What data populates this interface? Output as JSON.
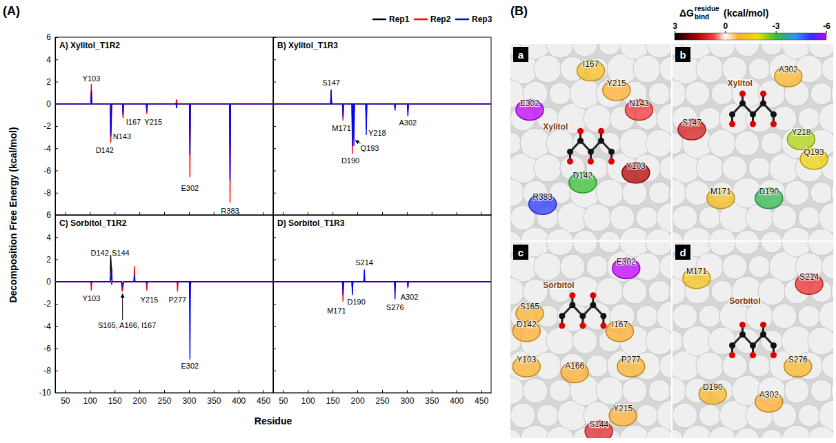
{
  "figure": {
    "panel_a_label": "(A)",
    "panel_b_label": "(B)",
    "ylabel": "Decomposition Free Energy (kcal/mol)",
    "xlabel": "Residue"
  },
  "chart_data": [
    {
      "type": "line",
      "title": "A) Xylitol_T1R2",
      "legend": "top-right",
      "tick_labels": "y",
      "xlim": [
        30,
        470
      ],
      "xticks": [
        50,
        100,
        150,
        200,
        250,
        300,
        350,
        400,
        450
      ],
      "ylim": [
        -10,
        6
      ],
      "yticks": [
        6,
        4,
        2,
        0,
        -2,
        -4,
        -6,
        -8
      ],
      "x": [
        30,
        102,
        103,
        104,
        141,
        142,
        143,
        144,
        166,
        167,
        168,
        214,
        215,
        216,
        274,
        275,
        276,
        301,
        302,
        303,
        382,
        383,
        384,
        470
      ],
      "series": [
        {
          "name": "Rep1",
          "color": "#000000",
          "values": [
            0,
            0,
            0.9,
            0,
            0,
            -1.5,
            -1.0,
            0,
            0,
            -0.8,
            0,
            0,
            -0.5,
            0,
            0,
            0.3,
            0,
            0,
            -3.0,
            0,
            0,
            -4.5,
            0,
            0
          ]
        },
        {
          "name": "Rep2",
          "color": "#ff0000",
          "values": [
            0,
            0,
            1.8,
            0,
            0,
            -3.5,
            -2.6,
            0,
            0,
            -1.3,
            0,
            0,
            -0.9,
            0,
            0,
            0.4,
            0,
            0,
            -6.6,
            0,
            0,
            -8.9,
            0,
            0
          ]
        },
        {
          "name": "Rep3",
          "color": "#0000ff",
          "values": [
            0,
            0,
            1.2,
            0,
            0,
            -2.9,
            -2.2,
            0,
            0,
            -1.0,
            0,
            0,
            -0.7,
            0,
            0,
            -0.4,
            0,
            0,
            -4.6,
            0,
            0,
            -6.8,
            0,
            0
          ]
        }
      ],
      "annotations": [
        {
          "text": "Y103",
          "x": 103,
          "y": 2.3
        },
        {
          "text": "I167",
          "x": 188,
          "y": -1.6
        },
        {
          "text": "N143",
          "x": 165,
          "y": -2.9
        },
        {
          "text": "D142",
          "x": 130,
          "y": -4.2
        },
        {
          "text": "Y215",
          "x": 228,
          "y": -1.6
        },
        {
          "text": "E302",
          "x": 302,
          "y": -7.6
        },
        {
          "text": "R383",
          "x": 383,
          "y": -9.6
        }
      ]
    },
    {
      "type": "line",
      "title": "B) Xylitol_T1R3",
      "tick_labels": false,
      "xlim": [
        30,
        470
      ],
      "xticks": [
        50,
        100,
        150,
        200,
        250,
        300,
        350,
        400,
        450
      ],
      "ylim": [
        -10,
        6
      ],
      "yticks": [
        6,
        4,
        2,
        0,
        -2,
        -4,
        -6,
        -8
      ],
      "x": [
        30,
        146,
        147,
        148,
        170,
        171,
        172,
        189,
        190,
        191,
        192,
        193,
        194,
        217,
        218,
        219,
        275,
        276,
        277,
        301,
        302,
        303,
        470
      ],
      "series": [
        {
          "color": "#000000",
          "values": [
            0,
            0,
            1.3,
            0,
            0,
            -0.8,
            0,
            0,
            -2.0,
            0,
            0,
            -1.5,
            0,
            0,
            -1.2,
            0,
            0,
            -0.2,
            0,
            0,
            -0.5,
            0,
            0
          ]
        },
        {
          "color": "#ff0000",
          "values": [
            0,
            0,
            0.6,
            0,
            0,
            -1.5,
            0,
            0,
            -4.5,
            0,
            0,
            -3.2,
            0,
            0,
            -2.2,
            0,
            0,
            -0.4,
            0,
            0,
            -0.8,
            0,
            0
          ]
        },
        {
          "color": "#0000ff",
          "values": [
            0,
            0,
            1.0,
            0,
            0,
            -1.2,
            0,
            0,
            -3.8,
            0,
            0,
            -3.8,
            0,
            0,
            -2.8,
            0,
            0,
            -0.6,
            0,
            0,
            -1.1,
            0,
            0
          ]
        }
      ],
      "annotations": [
        {
          "text": "S147",
          "x": 147,
          "y": 1.9
        },
        {
          "text": "M171",
          "x": 168,
          "y": -2.2
        },
        {
          "text": "D190",
          "x": 186,
          "y": -5.1
        },
        {
          "text": "Q193",
          "x": 225,
          "y": -4.0,
          "target": [
            196,
            -3.3
          ]
        },
        {
          "text": "Y218",
          "x": 240,
          "y": -2.6
        },
        {
          "text": "A302",
          "x": 302,
          "y": -1.7
        }
      ]
    },
    {
      "type": "line",
      "title": "C) Sorbitol_T1R2",
      "tick_labels": true,
      "xlim": [
        30,
        470
      ],
      "xticks": [
        50,
        100,
        150,
        200,
        250,
        300,
        350,
        400,
        450
      ],
      "ylim": [
        -10,
        6
      ],
      "yticks": [
        6,
        4,
        2,
        0,
        -2,
        -4,
        -6,
        -8,
        -10
      ],
      "x": [
        30,
        102,
        103,
        104,
        141,
        142,
        143,
        144,
        145,
        164,
        165,
        166,
        167,
        168,
        189,
        190,
        191,
        214,
        215,
        216,
        276,
        277,
        278,
        301,
        302,
        303,
        304,
        470
      ],
      "series": [
        {
          "color": "#000000",
          "values": [
            0,
            0,
            0,
            0,
            0,
            2.4,
            1.6,
            0.3,
            0,
            0,
            -0.2,
            -0.2,
            -0.1,
            0,
            0,
            0.2,
            0,
            0,
            -0.1,
            0,
            0,
            0,
            0,
            0,
            -0.2,
            0,
            0,
            0
          ]
        },
        {
          "color": "#ff0000",
          "values": [
            0,
            0,
            -0.8,
            0,
            0,
            0,
            0,
            -0.3,
            0,
            0,
            -0.9,
            -0.7,
            -0.4,
            0,
            0,
            1.4,
            0,
            0,
            -0.8,
            0,
            0,
            -0.9,
            0,
            0,
            -1.5,
            -0.3,
            0,
            0
          ]
        },
        {
          "color": "#0000ff",
          "values": [
            0,
            0,
            -0.1,
            0,
            0,
            0.3,
            0.2,
            1.3,
            0,
            0,
            -0.5,
            -0.4,
            -0.3,
            0,
            0,
            0.6,
            0,
            0,
            -0.2,
            0,
            0,
            -0.1,
            0,
            0,
            -7.0,
            -0.4,
            0,
            0
          ]
        }
      ],
      "annotations": [
        {
          "text": "D142",
          "x": 120,
          "y": 2.6
        },
        {
          "text": "S144",
          "x": 162,
          "y": 2.6
        },
        {
          "text": "Y103",
          "x": 103,
          "y": -1.5
        },
        {
          "text": "S165, A166, I167",
          "x": 175,
          "y": -3.9,
          "target": [
            166,
            -1.1
          ]
        },
        {
          "text": "Y215",
          "x": 220,
          "y": -1.6
        },
        {
          "text": "P277",
          "x": 277,
          "y": -1.6
        },
        {
          "text": "E302",
          "x": 302,
          "y": -7.6
        }
      ]
    },
    {
      "type": "line",
      "title": "D) Sorbitol_T1R3",
      "tick_labels": "x",
      "xlim": [
        30,
        470
      ],
      "xticks": [
        50,
        100,
        150,
        200,
        250,
        300,
        350,
        400,
        450
      ],
      "ylim": [
        -10,
        6
      ],
      "yticks": [
        6,
        4,
        2,
        0,
        -2,
        -4,
        -6,
        -8,
        -10
      ],
      "x": [
        30,
        170,
        171,
        172,
        189,
        190,
        191,
        213,
        214,
        215,
        275,
        276,
        277,
        301,
        302,
        303,
        470
      ],
      "series": [
        {
          "color": "#000000",
          "values": [
            0,
            0,
            -0.8,
            0,
            0,
            -0.6,
            0,
            0,
            0.4,
            0,
            0,
            -0.3,
            0,
            0,
            -0.2,
            0,
            0
          ]
        },
        {
          "color": "#ff0000",
          "values": [
            0,
            0,
            -1.8,
            0,
            0,
            -1.0,
            0,
            0,
            0.5,
            0,
            0,
            -0.8,
            0,
            0,
            -0.4,
            0,
            0
          ]
        },
        {
          "color": "#0000ff",
          "values": [
            0,
            0,
            -1.2,
            0,
            0,
            -1.2,
            0,
            0,
            1.1,
            0,
            0,
            -1.6,
            0,
            0,
            -0.6,
            0,
            0
          ]
        }
      ],
      "annotations": [
        {
          "text": "S214",
          "x": 214,
          "y": 1.7
        },
        {
          "text": "M171",
          "x": 158,
          "y": -2.6
        },
        {
          "text": "D190",
          "x": 198,
          "y": -1.8
        },
        {
          "text": "S276",
          "x": 276,
          "y": -2.3
        },
        {
          "text": "A302",
          "x": 305,
          "y": -1.4
        }
      ]
    }
  ],
  "panel_b": {
    "colorbar": {
      "title": "ΔG",
      "superscript": "residue",
      "subscript": "bind",
      "unit": "(kcal/mol)",
      "range": [
        3,
        -6
      ],
      "ticks": [
        3,
        0,
        -3,
        -6
      ]
    },
    "panels": [
      {
        "letter": "a",
        "ligand": "Xylitol",
        "residues": [
          {
            "label": "I167",
            "energy": -1.2
          },
          {
            "label": "Y215",
            "energy": -0.8
          },
          {
            "label": "N143",
            "energy": 0.8
          },
          {
            "label": "E302",
            "energy": -6.0
          },
          {
            "label": "D142",
            "energy": -3.0
          },
          {
            "label": "Y103",
            "energy": 1.6
          },
          {
            "label": "R383",
            "energy": -5.0
          }
        ]
      },
      {
        "letter": "b",
        "ligand": "Xylitol",
        "residues": [
          {
            "label": "A302",
            "energy": -1.0
          },
          {
            "label": "S147",
            "energy": 1.2
          },
          {
            "label": "Y218",
            "energy": -2.3
          },
          {
            "label": "Q193",
            "energy": -1.6
          },
          {
            "label": "M171",
            "energy": -1.2
          },
          {
            "label": "D190",
            "energy": -3.2
          }
        ]
      },
      {
        "letter": "c",
        "ligand": "Sorbitol",
        "residues": [
          {
            "label": "E302",
            "energy": -6.5
          },
          {
            "label": "S165",
            "energy": -0.9
          },
          {
            "label": "D142",
            "energy": -0.8
          },
          {
            "label": "I167",
            "energy": -0.8
          },
          {
            "label": "Y103",
            "energy": -0.9
          },
          {
            "label": "A166",
            "energy": -0.8
          },
          {
            "label": "P277",
            "energy": -0.9
          },
          {
            "label": "Y215",
            "energy": -0.8
          },
          {
            "label": "S144",
            "energy": 1.0
          }
        ]
      },
      {
        "letter": "d",
        "ligand": "Sorbitol",
        "residues": [
          {
            "label": "M171",
            "energy": -1.3
          },
          {
            "label": "S214",
            "energy": 0.9
          },
          {
            "label": "S276",
            "energy": -1.0
          },
          {
            "label": "D190",
            "energy": -1.0
          },
          {
            "label": "A302",
            "energy": -0.8
          }
        ]
      }
    ]
  }
}
